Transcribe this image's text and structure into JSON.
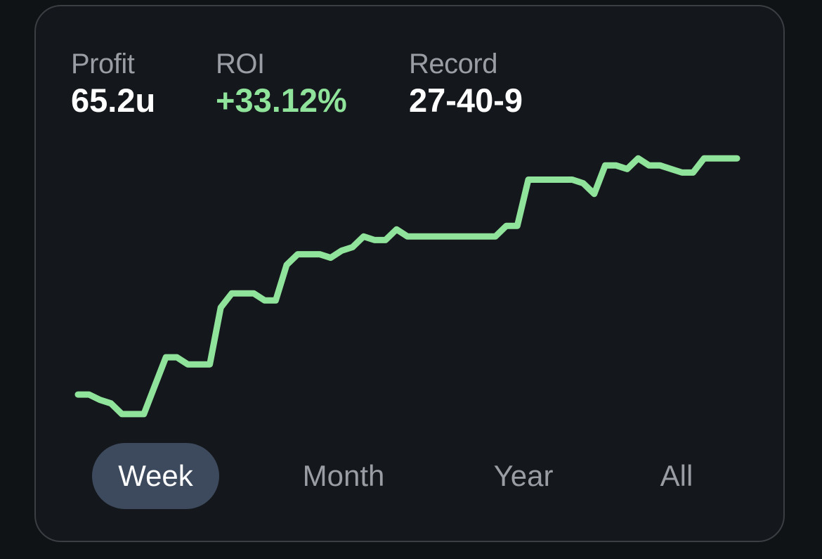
{
  "stats": {
    "profit": {
      "label": "Profit",
      "value": "65.2u"
    },
    "roi": {
      "label": "ROI",
      "value": "+33.12%"
    },
    "record": {
      "label": "Record",
      "value": "27-40-9"
    }
  },
  "colors": {
    "background": "#101316",
    "card": "#14171b",
    "positive": "#8fe39a",
    "label": "#9a9ea4",
    "active_tab": "#3d4a5d"
  },
  "tabs": [
    {
      "label": "Week",
      "active": true
    },
    {
      "label": "Month",
      "active": false
    },
    {
      "label": "Year",
      "active": false
    },
    {
      "label": "All",
      "active": false
    }
  ],
  "chart_data": {
    "type": "line",
    "title": "",
    "xlabel": "",
    "ylabel": "",
    "grid": false,
    "legend": "none",
    "series": [
      {
        "values": [
          -0.5,
          -0.5,
          -2,
          -3,
          -6,
          -6,
          -6,
          2,
          10,
          10,
          8,
          8,
          8,
          24,
          28,
          28,
          28,
          26,
          26,
          36,
          39,
          39,
          39,
          38,
          40,
          41,
          44,
          43,
          43,
          46,
          44,
          44,
          44,
          44,
          44,
          44,
          44,
          44,
          44,
          47,
          47,
          60,
          60,
          60,
          60,
          60,
          59,
          56,
          64,
          64,
          63,
          66,
          64,
          64,
          63,
          62,
          62,
          66,
          66,
          66,
          66
        ]
      }
    ],
    "ylim": [
      -8,
      70
    ]
  }
}
